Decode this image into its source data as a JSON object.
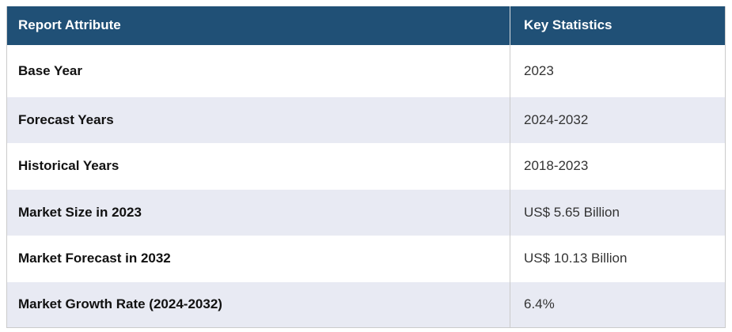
{
  "table": {
    "header": {
      "attribute_label": "Report Attribute",
      "statistics_label": "Key Statistics"
    },
    "rows": [
      {
        "attribute": "Base Year",
        "value": "2023"
      },
      {
        "attribute": "Forecast Years",
        "value": "2024-2032"
      },
      {
        "attribute": "Historical Years",
        "value": "2018-2023"
      },
      {
        "attribute": "Market Size in 2023",
        "value": "US$ 5.65 Billion"
      },
      {
        "attribute": "Market Forecast in 2032",
        "value": "US$ 10.13 Billion"
      },
      {
        "attribute": "Market Growth Rate (2024-2032)",
        "value": "6.4%"
      }
    ],
    "colors": {
      "header_bg": "#205076",
      "header_text": "#FFFFFF",
      "row_bg": "#FFFFFF",
      "row_alt_bg": "#E8EAF3",
      "border": "#CBCBCB",
      "label_text": "#111111",
      "value_text": "#333333"
    }
  },
  "chart_data": {
    "type": "table",
    "columns": [
      "Report Attribute",
      "Key Statistics"
    ],
    "rows": [
      [
        "Base Year",
        "2023"
      ],
      [
        "Forecast Years",
        "2024-2032"
      ],
      [
        "Historical Years",
        "2018-2023"
      ],
      [
        "Market Size in 2023",
        "US$ 5.65 Billion"
      ],
      [
        "Market Forecast in 2032",
        "US$ 10.13 Billion"
      ],
      [
        "Market Growth Rate (2024-2032)",
        "6.4%"
      ]
    ]
  }
}
